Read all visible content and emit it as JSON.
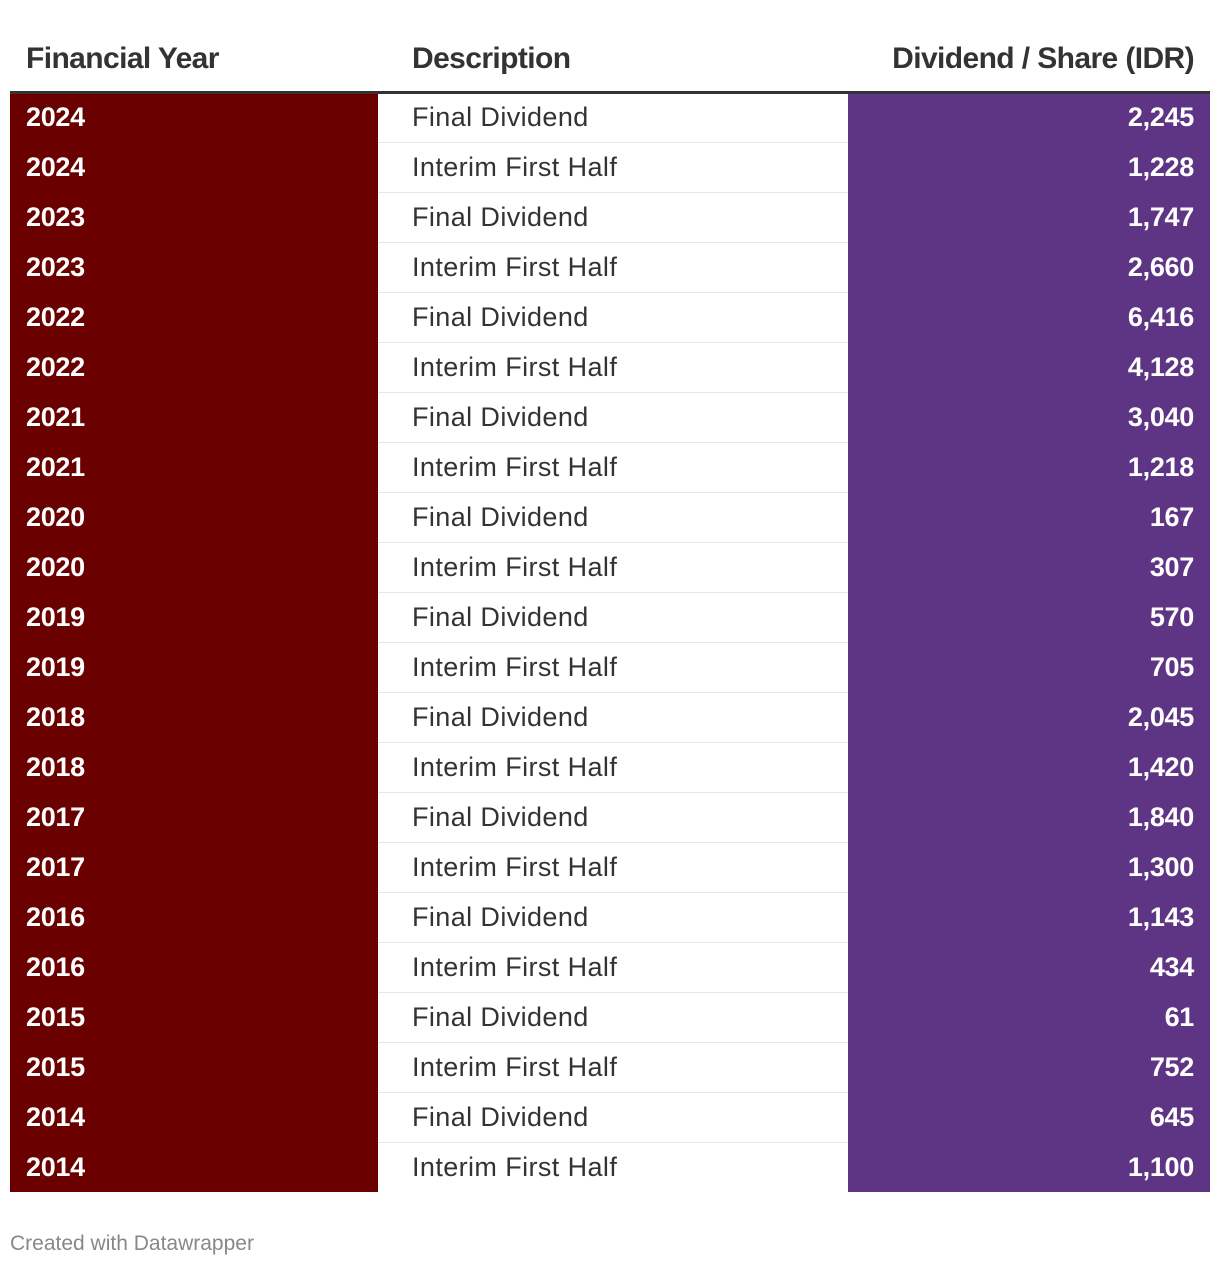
{
  "table": {
    "headers": {
      "year": "Financial Year",
      "description": "Description",
      "dividend": "Dividend / Share (IDR)"
    },
    "rows": [
      {
        "year": "2024",
        "description": "Final Dividend",
        "dividend": "2,245"
      },
      {
        "year": "2024",
        "description": "Interim First Half",
        "dividend": "1,228"
      },
      {
        "year": "2023",
        "description": "Final Dividend",
        "dividend": "1,747"
      },
      {
        "year": "2023",
        "description": "Interim First Half",
        "dividend": "2,660"
      },
      {
        "year": "2022",
        "description": "Final Dividend",
        "dividend": "6,416"
      },
      {
        "year": "2022",
        "description": "Interim First Half",
        "dividend": "4,128"
      },
      {
        "year": "2021",
        "description": "Final Dividend",
        "dividend": "3,040"
      },
      {
        "year": "2021",
        "description": "Interim First Half",
        "dividend": "1,218"
      },
      {
        "year": "2020",
        "description": "Final Dividend",
        "dividend": "167"
      },
      {
        "year": "2020",
        "description": "Interim First Half",
        "dividend": "307"
      },
      {
        "year": "2019",
        "description": "Final Dividend",
        "dividend": "570"
      },
      {
        "year": "2019",
        "description": "Interim First Half",
        "dividend": "705"
      },
      {
        "year": "2018",
        "description": "Final Dividend",
        "dividend": "2,045"
      },
      {
        "year": "2018",
        "description": "Interim First Half",
        "dividend": "1,420"
      },
      {
        "year": "2017",
        "description": "Final Dividend",
        "dividend": "1,840"
      },
      {
        "year": "2017",
        "description": "Interim First Half",
        "dividend": "1,300"
      },
      {
        "year": "2016",
        "description": "Final Dividend",
        "dividend": "1,143"
      },
      {
        "year": "2016",
        "description": "Interim First Half",
        "dividend": "434"
      },
      {
        "year": "2015",
        "description": "Final Dividend",
        "dividend": "61"
      },
      {
        "year": "2015",
        "description": "Interim First Half",
        "dividend": "752"
      },
      {
        "year": "2014",
        "description": "Final Dividend",
        "dividend": "645"
      },
      {
        "year": "2014",
        "description": "Interim First Half",
        "dividend": "1,100"
      }
    ]
  },
  "colors": {
    "year_column": "#6b0000",
    "dividend_column": "#5e3585",
    "header_text": "#333333",
    "footer_text": "#888888"
  },
  "footer": {
    "credit": "Created with Datawrapper"
  }
}
